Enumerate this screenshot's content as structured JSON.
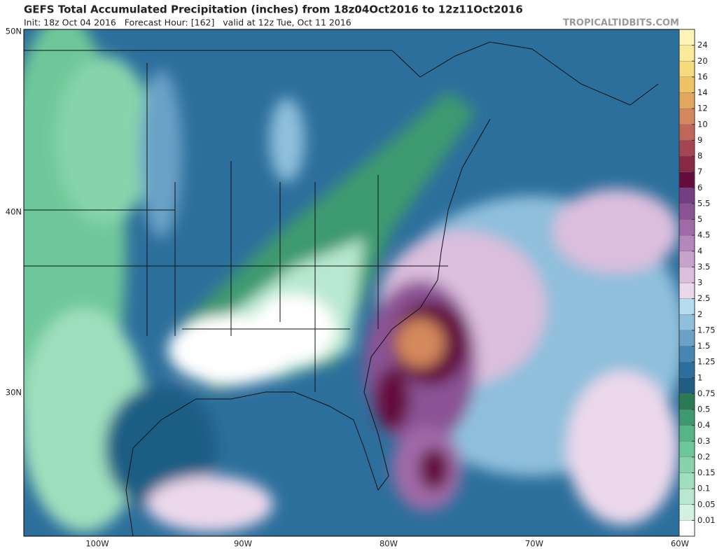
{
  "header": {
    "title": "GEFS Total Accumulated Precipitation (inches) from 18z04Oct2016 to 12z11Oct2016",
    "subtitle": "Init: 18z Oct 04 2016   Forecast Hour: [162]   valid at 12z Tue, Oct 11 2016",
    "watermark": "TROPICALTIDBITS.COM"
  },
  "map": {
    "lat_labels": [
      "50N",
      "40N",
      "30N"
    ],
    "lon_labels": [
      "100W",
      "90W",
      "80W",
      "70W",
      "60W"
    ]
  },
  "colorbar": {
    "levels": [
      0.01,
      0.05,
      0.1,
      0.15,
      0.2,
      0.3,
      0.4,
      0.5,
      0.75,
      1,
      1.25,
      1.5,
      1.75,
      2,
      2.5,
      3,
      3.5,
      4,
      4.5,
      5,
      5.5,
      6,
      7,
      8,
      9,
      10,
      12,
      14,
      16,
      20,
      24
    ],
    "colors": [
      "#ffffff",
      "#d2f1e0",
      "#b8e8cf",
      "#9fdfbd",
      "#87d4ac",
      "#6ec79a",
      "#55b587",
      "#3d9a70",
      "#2a7a54",
      "#1f5d84",
      "#2d6f9c",
      "#4686b2",
      "#6aa2c7",
      "#8fbfdc",
      "#b6ddef",
      "#ecd8ec",
      "#dcbedd",
      "#c9a2cd",
      "#b586bc",
      "#a06aa8",
      "#8b5295",
      "#753d82",
      "#640d3c",
      "#882847",
      "#a54552",
      "#bf6759",
      "#d4885c",
      "#e3a65e",
      "#efc266",
      "#f7da7c",
      "#fcea99",
      "#fff4b8"
    ]
  }
}
